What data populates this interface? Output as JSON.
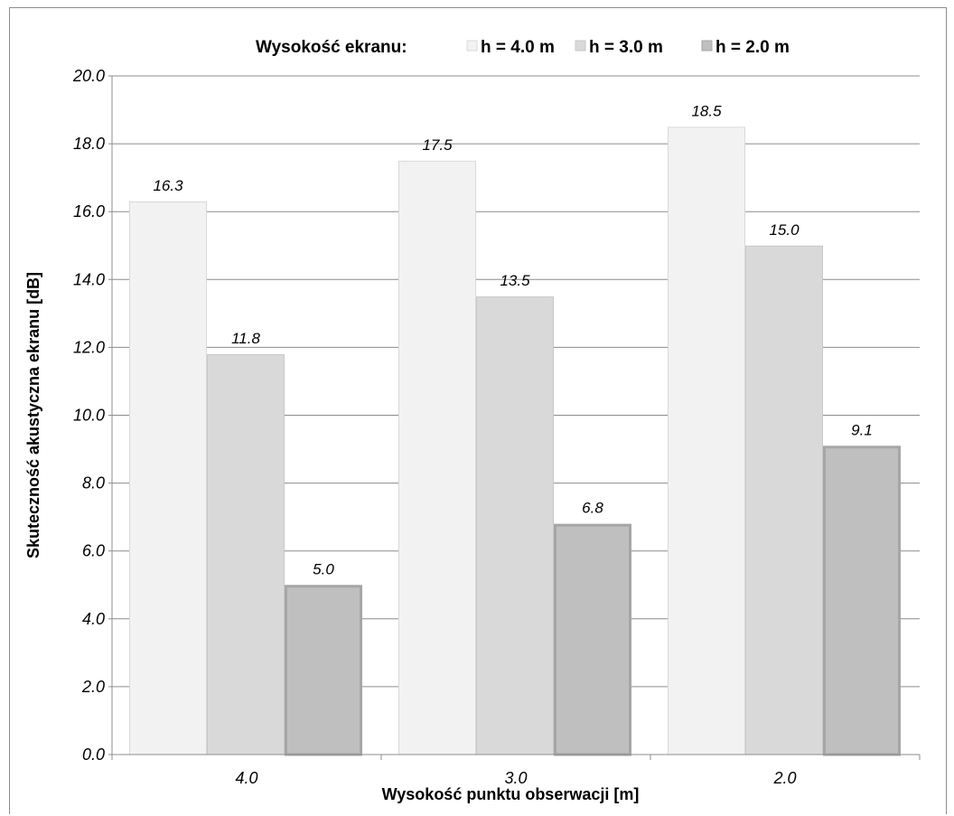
{
  "chart_data": {
    "type": "bar",
    "categories": [
      "4.0",
      "3.0",
      "2.0"
    ],
    "series": [
      {
        "name": "h = 4.0 m",
        "values": [
          16.3,
          17.5,
          18.5
        ],
        "labels": [
          "16.3",
          "17.5",
          "18.5"
        ],
        "color": "#f2f2f2",
        "stroke": "#d9d9d9"
      },
      {
        "name": "h = 3.0 m",
        "values": [
          11.8,
          13.5,
          15.0
        ],
        "labels": [
          "11.8",
          "13.5",
          "15.0"
        ],
        "color": "#d9d9d9",
        "stroke": "#c8c8c8"
      },
      {
        "name": "h = 2.0 m",
        "values": [
          5.0,
          6.8,
          9.1
        ],
        "labels": [
          "5.0",
          "6.8",
          "9.1"
        ],
        "color": "#bfbfbf",
        "stroke": "#a6a6a6"
      }
    ],
    "title": "",
    "legend_title": "Wysokość ekranu:",
    "legend_position": "top",
    "xlabel": "Wysokość punktu obserwacji [m]",
    "ylabel": "Skuteczność akustyczna ekranu [dB]",
    "ylim": [
      0,
      20
    ],
    "yticks": [
      "0.0",
      "2.0",
      "4.0",
      "6.0",
      "8.0",
      "10.0",
      "12.0",
      "14.0",
      "16.0",
      "18.0",
      "20.0"
    ],
    "grid": true
  }
}
